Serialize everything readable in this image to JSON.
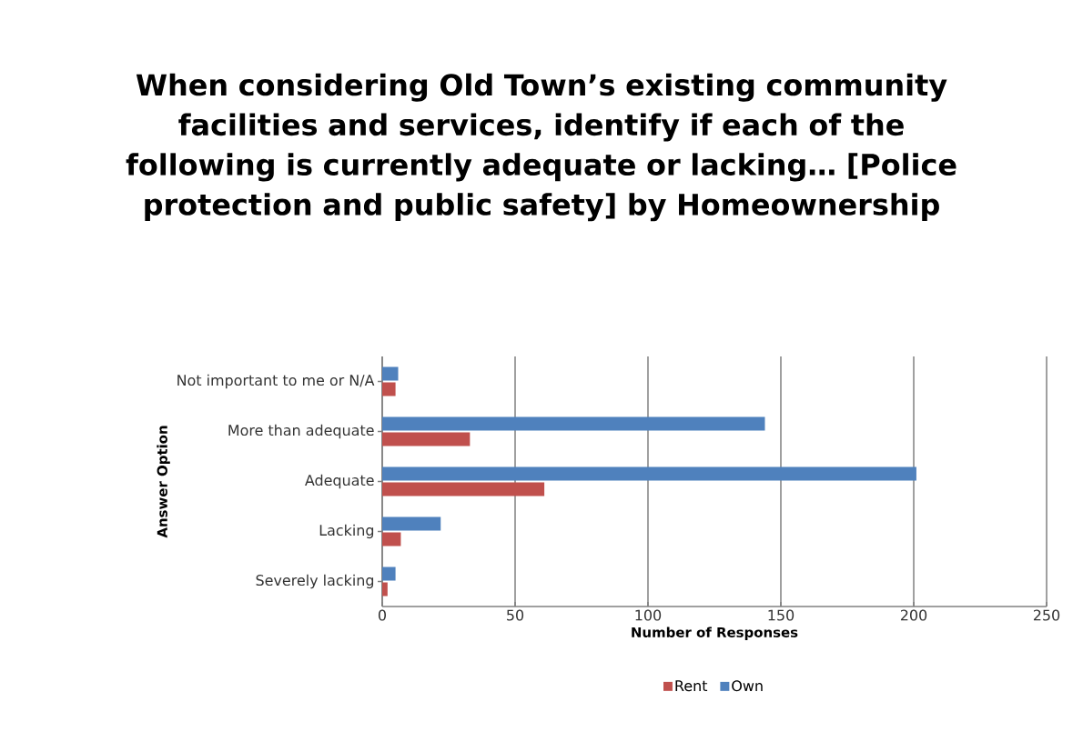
{
  "chart_data": {
    "type": "bar",
    "orientation": "horizontal",
    "title": "When considering Old Town’s existing community facilities and services, identify if each of the following is currently adequate or lacking… [Police protection and public safety] by Homeownership",
    "xlabel": "Number of Responses",
    "ylabel": "Answer Option",
    "categories": [
      "Not important to me or N/A",
      "More than adequate",
      "Adequate",
      "Lacking",
      "Severely lacking"
    ],
    "series": [
      {
        "name": "Rent",
        "color": "#c0504d",
        "values": [
          5,
          33,
          61,
          7,
          2
        ]
      },
      {
        "name": "Own",
        "color": "#4f81bd",
        "values": [
          6,
          144,
          201,
          22,
          5
        ]
      }
    ],
    "xlim": [
      0,
      250
    ],
    "xticks": [
      0,
      50,
      100,
      150,
      200,
      250
    ],
    "grid": "x",
    "legend": "bottom"
  }
}
